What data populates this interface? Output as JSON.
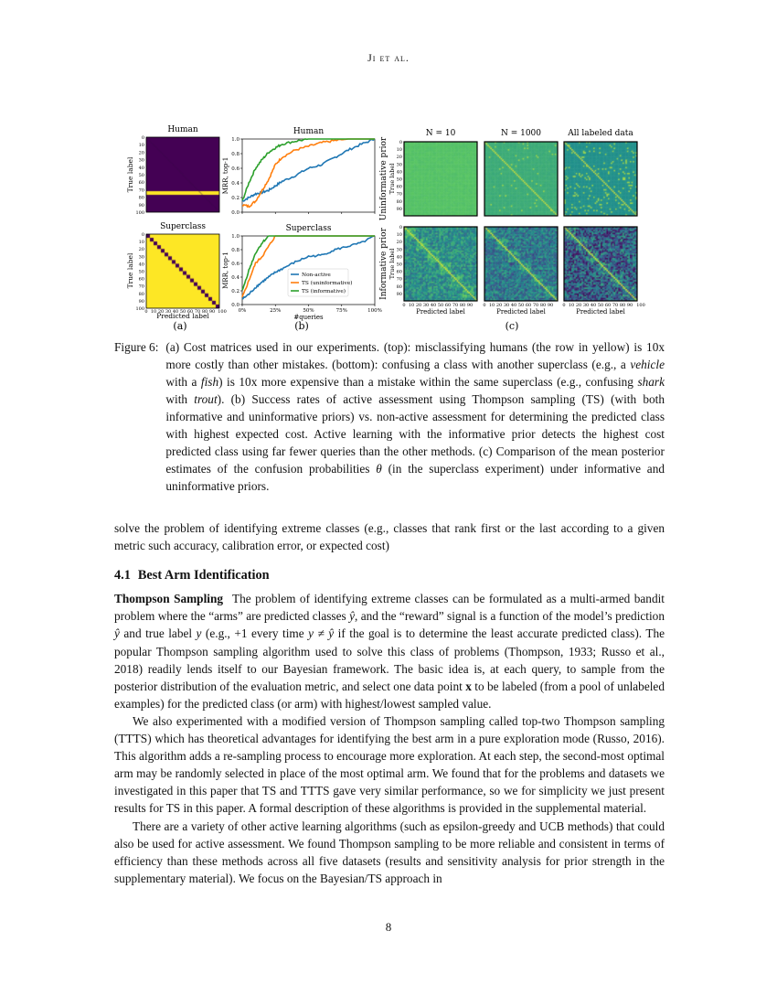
{
  "header": {
    "running_title": "Ji et al."
  },
  "figure": {
    "panel_a": {
      "label": "(a)",
      "top_title": "Human",
      "bottom_title": "Superclass",
      "ylabel": "True label",
      "xlabel": "Predicted label",
      "yticks": [
        "0",
        "10",
        "20",
        "30",
        "40",
        "50",
        "60",
        "70",
        "80",
        "90",
        "100"
      ],
      "xticks": [
        "0",
        "10",
        "20",
        "30",
        "40",
        "50",
        "60",
        "70",
        "80",
        "90",
        "100"
      ],
      "colors": {
        "low": "#440154",
        "high": "#fde725"
      }
    },
    "panel_c": {
      "label": "(c)",
      "col_titles": [
        "N = 10",
        "N = 1000",
        "All labeled data"
      ],
      "row_titles": [
        "Uninformative prior",
        "Informative prior"
      ],
      "ylabel": "True label",
      "xlabel": "Predicted label",
      "yticks": [
        "0",
        "10",
        "20",
        "30",
        "40",
        "50",
        "60",
        "70",
        "80",
        "90"
      ],
      "xticks": [
        "0",
        "10",
        "20",
        "30",
        "40",
        "50",
        "60",
        "70",
        "80",
        "90"
      ],
      "xticks_last": [
        "0",
        "10",
        "20",
        "30",
        "40",
        "50",
        "60",
        "70",
        "80",
        "90",
        "100"
      ]
    }
  },
  "chart_data": [
    {
      "type": "line",
      "panel": "(b)",
      "title": "Human",
      "xlabel": "",
      "ylabel": "MRR, top-1",
      "xlim": [
        0,
        100
      ],
      "ylim": [
        0,
        1
      ],
      "yticks": [
        "0.0",
        "0.2",
        "0.4",
        "0.6",
        "0.8",
        "1.0"
      ],
      "grid": false,
      "x": [
        0,
        5,
        10,
        15,
        20,
        25,
        30,
        40,
        50,
        60,
        70,
        80,
        90,
        100
      ],
      "series": [
        {
          "name": "Non-active",
          "color": "#1f77b4",
          "values": [
            0.15,
            0.2,
            0.25,
            0.27,
            0.3,
            0.36,
            0.42,
            0.5,
            0.6,
            0.65,
            0.75,
            0.85,
            0.93,
            1.0
          ]
        },
        {
          "name": "TS (uninformative)",
          "color": "#ff7f0e",
          "values": [
            0.1,
            0.08,
            0.15,
            0.3,
            0.45,
            0.65,
            0.75,
            0.85,
            0.9,
            0.95,
            0.98,
            1.0,
            1.0,
            1.0
          ]
        },
        {
          "name": "TS (informative)",
          "color": "#2ca02c",
          "values": [
            0.15,
            0.4,
            0.6,
            0.72,
            0.82,
            0.88,
            0.93,
            0.97,
            1.0,
            1.0,
            1.0,
            1.0,
            1.0,
            1.0
          ]
        }
      ]
    },
    {
      "type": "line",
      "panel": "(b)",
      "title": "Superclass",
      "xlabel": "#queries",
      "ylabel": "MRR, top-1",
      "xlim": [
        0,
        100
      ],
      "ylim": [
        0,
        1
      ],
      "xticks": [
        "0%",
        "25%",
        "50%",
        "75%",
        "100%"
      ],
      "yticks": [
        "0.0",
        "0.2",
        "0.4",
        "0.6",
        "0.8",
        "1.0"
      ],
      "grid": false,
      "legend": "bottom-right",
      "label": "(b)",
      "x": [
        0,
        5,
        10,
        15,
        20,
        25,
        30,
        40,
        50,
        60,
        70,
        80,
        90,
        100
      ],
      "series": [
        {
          "name": "Non-active",
          "color": "#1f77b4",
          "values": [
            0.08,
            0.15,
            0.25,
            0.33,
            0.4,
            0.47,
            0.52,
            0.62,
            0.7,
            0.72,
            0.8,
            0.85,
            0.9,
            1.0
          ]
        },
        {
          "name": "TS (uninformative)",
          "color": "#ff7f0e",
          "values": [
            0.1,
            0.35,
            0.6,
            0.7,
            0.85,
            1.0,
            1.0,
            1.0,
            1.0,
            1.0,
            1.0,
            1.0,
            1.0,
            1.0
          ]
        },
        {
          "name": "TS (informative)",
          "color": "#2ca02c",
          "values": [
            0.2,
            0.5,
            0.75,
            0.9,
            1.0,
            1.0,
            1.0,
            1.0,
            1.0,
            1.0,
            1.0,
            1.0,
            1.0,
            1.0
          ]
        }
      ]
    }
  ],
  "caption": {
    "label": "Figure 6:",
    "segments": [
      {
        "t": "(a) Cost matrices used in our experiments. (top): misclassifying humans (the row in yellow) is 10x more costly than other mistakes. (bottom): confusing a class with another superclass (e.g., a "
      },
      {
        "t": "vehicle",
        "s": "it"
      },
      {
        "t": " with a "
      },
      {
        "t": "fish",
        "s": "it"
      },
      {
        "t": ") is 10x more expensive than a mistake within the same superclass (e.g., confusing "
      },
      {
        "t": "shark",
        "s": "it"
      },
      {
        "t": " with "
      },
      {
        "t": "trout",
        "s": "it"
      },
      {
        "t": "). (b) Success rates of active assessment using Thompson sampling (TS) (with both informative and uninformative priors) vs. non-active assessment for determining the predicted class with highest expected cost. Active learning with the informative prior detects the highest cost predicted class using far fewer queries than the other methods. (c) Comparison of the mean posterior estimates of the confusion probabilities "
      },
      {
        "t": "θ",
        "s": "it"
      },
      {
        "t": " (in the superclass experiment) under informative and uninformative priors."
      }
    ]
  },
  "body": {
    "intro": [
      {
        "t": "solve the problem of identifying extreme classes (e.g., classes that rank first or the last according to a given metric such accuracy, calibration error, or expected cost)"
      }
    ],
    "section": {
      "number": "4.1",
      "title": "Best Arm Identification"
    },
    "p1": [
      {
        "t": "Thompson Sampling",
        "s": "bf sp"
      },
      {
        "t": "The problem of identifying extreme classes can be formulated as a multi-armed bandit problem where the “arms” are predicted classes "
      },
      {
        "t": "ŷ",
        "s": "it"
      },
      {
        "t": ", and the “reward” signal is a function of the model’s prediction "
      },
      {
        "t": "ŷ",
        "s": "it"
      },
      {
        "t": " and true label "
      },
      {
        "t": "y",
        "s": "it"
      },
      {
        "t": " (e.g., +1 every time "
      },
      {
        "t": "y ≠ ŷ",
        "s": "it"
      },
      {
        "t": " if the goal is to determine the least accurate predicted class). The popular Thompson sampling algorithm used to solve this class of problems (Thompson, 1933; Russo et al., 2018) readily lends itself to our Bayesian framework. The basic idea is, at each query, to sample from the posterior distribution of the evaluation metric, and select one data point "
      },
      {
        "t": "x",
        "s": "bf"
      },
      {
        "t": " to be labeled (from a pool of unlabeled examples) for the predicted class (or arm) with highest/lowest sampled value."
      }
    ],
    "p2": [
      {
        "t": "We also experimented with a modified version of Thompson sampling called top-two Thompson sampling (TTTS) which has theoretical advantages for identifying the best arm in a pure exploration mode (Russo, 2016). This algorithm adds a re-sampling process to encourage more exploration. At each step, the second-most optimal arm may be randomly selected in place of the most optimal arm. We found that for the problems and datasets we investigated in this paper that TS and TTTS gave very similar performance, so we for simplicity we just present results for TS in this paper. A formal description of these algorithms is provided in the supplemental material."
      }
    ],
    "p3": [
      {
        "t": "There are a variety of other active learning algorithms (such as epsilon-greedy and UCB methods) that could also be used for active assessment. We found Thompson sampling to be more reliable and consistent in terms of efficiency than these methods across all five datasets (results and sensitivity analysis for prior strength in the supplementary material). We focus on the Bayesian/TS approach in"
      }
    ]
  },
  "footer": {
    "page_number": "8"
  }
}
